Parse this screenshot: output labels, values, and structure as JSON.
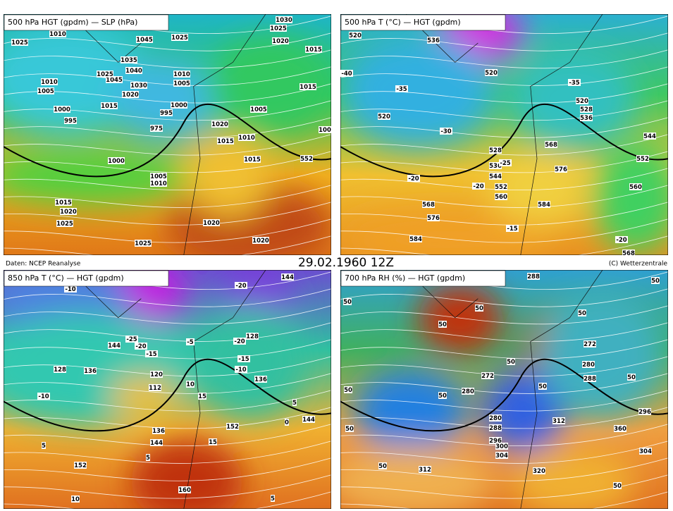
{
  "footer": {
    "left": "Daten: NCEP Reanalyse",
    "center": "29.02.1960 12Z",
    "right": "(C) Wetterzentrale"
  },
  "panels": [
    {
      "title": "500 hPa HGT (gpdm) — SLP (hPa)",
      "labels": [
        "1010",
        "1025",
        "1045",
        "1025",
        "1030",
        "1025",
        "1020",
        "1015",
        "1035",
        "1040",
        "1045",
        "1025",
        "1030",
        "1010",
        "1005",
        "1020",
        "1010",
        "1005",
        "1015",
        "1015",
        "1000",
        "995",
        "1000",
        "995",
        "975",
        "1005",
        "1020",
        "1015",
        "1010",
        "1000",
        "1015",
        "552",
        "1005",
        "1010",
        "1015",
        "1020",
        "1025",
        "1020",
        "1025",
        "1020",
        "100"
      ]
    },
    {
      "title": "500 hPa T (°C) — HGT (gpdm)",
      "labels": [
        "520",
        "536",
        "-40",
        "520",
        "-35",
        "-35",
        "520",
        "528",
        "536",
        "520",
        "-30",
        "544",
        "568",
        "528",
        "536",
        "-25",
        "576",
        "552",
        "544",
        "-20",
        "552",
        "-20",
        "560",
        "568",
        "584",
        "560",
        "576",
        "-15",
        "-20",
        "584",
        "568"
      ]
    },
    {
      "title": "850 hPa T (°C) — HGT (gpdm)",
      "labels": [
        "-10",
        "-20",
        "144",
        "-25",
        "-20",
        "144",
        "-5",
        "-15",
        "-20",
        "128",
        "-15",
        "-10",
        "128",
        "136",
        "120",
        "112",
        "10",
        "136",
        "15",
        "-10",
        "5",
        "0",
        "144",
        "136",
        "152",
        "144",
        "15",
        "5",
        "5",
        "152",
        "160",
        "10",
        "5"
      ]
    },
    {
      "title": "700 hPa RH (%) — HGT (gpdm)",
      "labels": [
        "288",
        "50",
        "50",
        "50",
        "50",
        "272",
        "50",
        "280",
        "288",
        "50",
        "50",
        "272",
        "50",
        "280",
        "50",
        "50",
        "296",
        "312",
        "280",
        "288",
        "296",
        "300",
        "304",
        "50",
        "360",
        "304",
        "50",
        "312",
        "320",
        "50"
      ]
    }
  ]
}
